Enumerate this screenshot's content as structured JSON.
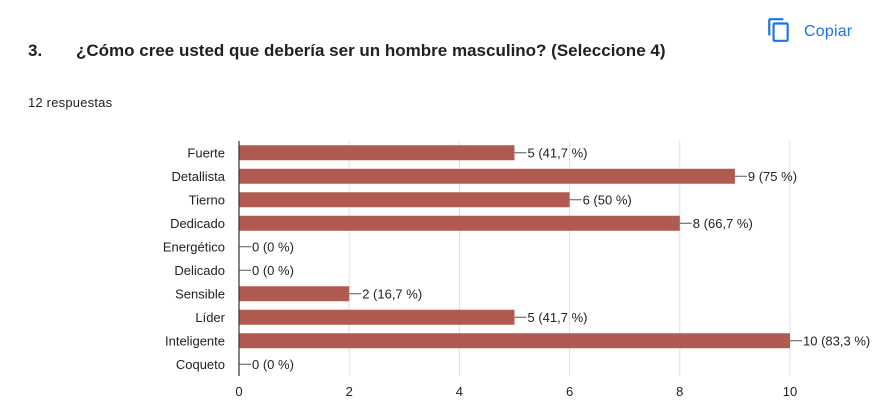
{
  "header": {
    "copy_label": "Copiar",
    "copy_icon": "copy-icon",
    "accent_color": "#1a73e8"
  },
  "question": {
    "number": "3.",
    "text": "¿Cómo cree usted que debería ser un hombre masculino? (Seleccione 4)",
    "responses": "12 respuestas"
  },
  "chart_data": {
    "type": "bar",
    "orientation": "horizontal",
    "categories": [
      "Fuerte",
      "Detallista",
      "Tierno",
      "Dedicado",
      "Energético",
      "Delicado",
      "Sensible",
      "Líder",
      "Inteligente",
      "Coqueto"
    ],
    "values": [
      5,
      9,
      6,
      8,
      0,
      0,
      2,
      5,
      10,
      0
    ],
    "data_labels": [
      "5 (41,7 %)",
      "9 (75 %)",
      "6 (50 %)",
      "8 (66,7 %)",
      "0 (0 %)",
      "0 (0 %)",
      "2 (16,7 %)",
      "5 (41,7 %)",
      "10 (83,3 %)",
      "0 (0 %)"
    ],
    "xlim": [
      0,
      10
    ],
    "xticks": [
      "0",
      "2",
      "4",
      "6",
      "8",
      "10"
    ],
    "grid": true,
    "bar_color": "#b05a52",
    "title": "",
    "xlabel": "",
    "ylabel": ""
  }
}
